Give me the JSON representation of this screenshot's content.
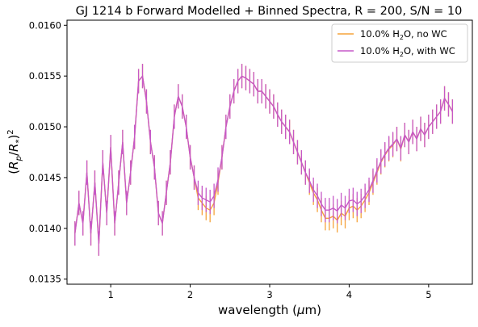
{
  "chart_data": {
    "type": "line",
    "title": "GJ 1214 b Forward Modelled + Binned Spectra, R = 200, S/N = 10",
    "xlabel": "wavelength (",
    "xlabel_unit": "μ",
    "xlabel_unit_suffix": "m)",
    "ylabel": "(R_p/R_*)^2",
    "xlim": [
      0.45,
      5.55
    ],
    "ylim": [
      0.01345,
      0.01605
    ],
    "x_ticks": [
      1,
      2,
      3,
      4,
      5
    ],
    "y_ticks": [
      0.0135,
      0.014,
      0.0145,
      0.015,
      0.0155,
      0.016
    ],
    "legend_position": "top-right",
    "grid": false,
    "series": [
      {
        "name": "10.0% H2O, no WC",
        "label_prefix": "10.0% H",
        "label_sub": "2",
        "label_suffix": "O, no WC",
        "color": "#f5a33a",
        "error_bar": 0.00012,
        "points": [
          [
            0.55,
            0.01395
          ],
          [
            0.6,
            0.01425
          ],
          [
            0.65,
            0.01405
          ],
          [
            0.7,
            0.01455
          ],
          [
            0.75,
            0.01395
          ],
          [
            0.8,
            0.01445
          ],
          [
            0.85,
            0.01385
          ],
          [
            0.9,
            0.01465
          ],
          [
            0.95,
            0.01415
          ],
          [
            1.0,
            0.0148
          ],
          [
            1.05,
            0.01405
          ],
          [
            1.1,
            0.01445
          ],
          [
            1.15,
            0.01485
          ],
          [
            1.2,
            0.01425
          ],
          [
            1.25,
            0.01455
          ],
          [
            1.3,
            0.0149
          ],
          [
            1.35,
            0.01545
          ],
          [
            1.4,
            0.0155
          ],
          [
            1.45,
            0.01525
          ],
          [
            1.5,
            0.01485
          ],
          [
            1.55,
            0.0146
          ],
          [
            1.6,
            0.01415
          ],
          [
            1.65,
            0.01405
          ],
          [
            1.7,
            0.01435
          ],
          [
            1.75,
            0.01465
          ],
          [
            1.8,
            0.0151
          ],
          [
            1.85,
            0.0153
          ],
          [
            1.9,
            0.0152
          ],
          [
            1.95,
            0.015
          ],
          [
            2.0,
            0.0147
          ],
          [
            2.05,
            0.0145
          ],
          [
            2.1,
            0.0143
          ],
          [
            2.15,
            0.01425
          ],
          [
            2.2,
            0.0142
          ],
          [
            2.25,
            0.01418
          ],
          [
            2.3,
            0.01425
          ],
          [
            2.35,
            0.01445
          ],
          [
            2.4,
            0.0147
          ],
          [
            2.45,
            0.015
          ],
          [
            2.5,
            0.0152
          ],
          [
            2.55,
            0.01535
          ],
          [
            2.6,
            0.01545
          ],
          [
            2.65,
            0.0155
          ],
          [
            2.7,
            0.01548
          ],
          [
            2.75,
            0.01545
          ],
          [
            2.8,
            0.01542
          ],
          [
            2.85,
            0.01535
          ],
          [
            2.9,
            0.01535
          ],
          [
            2.95,
            0.0153
          ],
          [
            3.0,
            0.01525
          ],
          [
            3.05,
            0.0152
          ],
          [
            3.1,
            0.01512
          ],
          [
            3.15,
            0.01505
          ],
          [
            3.2,
            0.015
          ],
          [
            3.25,
            0.01495
          ],
          [
            3.3,
            0.01485
          ],
          [
            3.35,
            0.01475
          ],
          [
            3.4,
            0.01465
          ],
          [
            3.45,
            0.01455
          ],
          [
            3.5,
            0.01445
          ],
          [
            3.55,
            0.01435
          ],
          [
            3.6,
            0.01428
          ],
          [
            3.65,
            0.01418
          ],
          [
            3.7,
            0.0141
          ],
          [
            3.75,
            0.0141
          ],
          [
            3.8,
            0.01412
          ],
          [
            3.85,
            0.01408
          ],
          [
            3.9,
            0.01415
          ],
          [
            3.95,
            0.01412
          ],
          [
            4.0,
            0.0142
          ],
          [
            4.05,
            0.01422
          ],
          [
            4.1,
            0.01418
          ],
          [
            4.15,
            0.01422
          ],
          [
            4.2,
            0.01428
          ],
          [
            4.25,
            0.01435
          ],
          [
            4.3,
            0.01445
          ],
          [
            4.35,
            0.01455
          ],
          [
            4.4,
            0.01465
          ],
          [
            4.45,
            0.01472
          ],
          [
            4.5,
            0.01478
          ],
          [
            4.55,
            0.01482
          ],
          [
            4.6,
            0.01488
          ],
          [
            4.65,
            0.01478
          ],
          [
            4.7,
            0.01492
          ],
          [
            4.75,
            0.01485
          ],
          [
            4.8,
            0.01495
          ],
          [
            4.85,
            0.01488
          ],
          [
            4.9,
            0.01498
          ],
          [
            4.95,
            0.01492
          ],
          [
            5.0,
            0.015
          ],
          [
            5.05,
            0.01505
          ],
          [
            5.1,
            0.0151
          ],
          [
            5.15,
            0.01515
          ],
          [
            5.2,
            0.01528
          ],
          [
            5.25,
            0.01522
          ],
          [
            5.3,
            0.01515
          ]
        ]
      },
      {
        "name": "10.0% H2O, with WC",
        "label_prefix": "10.0% H",
        "label_sub": "2",
        "label_suffix": "O, with WC",
        "color": "#c659c8",
        "error_bar": 0.00012,
        "points": [
          [
            0.55,
            0.01395
          ],
          [
            0.6,
            0.01425
          ],
          [
            0.65,
            0.01405
          ],
          [
            0.7,
            0.01455
          ],
          [
            0.75,
            0.01395
          ],
          [
            0.8,
            0.01445
          ],
          [
            0.85,
            0.01385
          ],
          [
            0.9,
            0.01465
          ],
          [
            0.95,
            0.01415
          ],
          [
            1.0,
            0.0148
          ],
          [
            1.05,
            0.01405
          ],
          [
            1.1,
            0.01445
          ],
          [
            1.15,
            0.01485
          ],
          [
            1.2,
            0.01425
          ],
          [
            1.25,
            0.01455
          ],
          [
            1.3,
            0.0149
          ],
          [
            1.35,
            0.01545
          ],
          [
            1.4,
            0.0155
          ],
          [
            1.45,
            0.01525
          ],
          [
            1.5,
            0.01485
          ],
          [
            1.55,
            0.0146
          ],
          [
            1.6,
            0.01415
          ],
          [
            1.65,
            0.01405
          ],
          [
            1.7,
            0.01435
          ],
          [
            1.75,
            0.01465
          ],
          [
            1.8,
            0.0151
          ],
          [
            1.85,
            0.0153
          ],
          [
            1.9,
            0.0152
          ],
          [
            1.95,
            0.015
          ],
          [
            2.0,
            0.0147
          ],
          [
            2.05,
            0.0145
          ],
          [
            2.1,
            0.01435
          ],
          [
            2.15,
            0.0143
          ],
          [
            2.2,
            0.01428
          ],
          [
            2.25,
            0.01426
          ],
          [
            2.3,
            0.01432
          ],
          [
            2.35,
            0.01448
          ],
          [
            2.4,
            0.0147
          ],
          [
            2.45,
            0.015
          ],
          [
            2.5,
            0.0152
          ],
          [
            2.55,
            0.01535
          ],
          [
            2.6,
            0.01545
          ],
          [
            2.65,
            0.0155
          ],
          [
            2.7,
            0.01548
          ],
          [
            2.75,
            0.01545
          ],
          [
            2.8,
            0.01542
          ],
          [
            2.85,
            0.01535
          ],
          [
            2.9,
            0.01535
          ],
          [
            2.95,
            0.0153
          ],
          [
            3.0,
            0.01525
          ],
          [
            3.05,
            0.0152
          ],
          [
            3.1,
            0.01512
          ],
          [
            3.15,
            0.01505
          ],
          [
            3.2,
            0.015
          ],
          [
            3.25,
            0.01495
          ],
          [
            3.3,
            0.01485
          ],
          [
            3.35,
            0.01475
          ],
          [
            3.4,
            0.01465
          ],
          [
            3.45,
            0.01455
          ],
          [
            3.5,
            0.01447
          ],
          [
            3.55,
            0.01438
          ],
          [
            3.6,
            0.01432
          ],
          [
            3.65,
            0.01424
          ],
          [
            3.7,
            0.01418
          ],
          [
            3.75,
            0.01418
          ],
          [
            3.8,
            0.0142
          ],
          [
            3.85,
            0.01417
          ],
          [
            3.9,
            0.01423
          ],
          [
            3.95,
            0.0142
          ],
          [
            4.0,
            0.01427
          ],
          [
            4.05,
            0.01428
          ],
          [
            4.1,
            0.01424
          ],
          [
            4.15,
            0.01427
          ],
          [
            4.2,
            0.01432
          ],
          [
            4.25,
            0.01438
          ],
          [
            4.3,
            0.01447
          ],
          [
            4.35,
            0.01457
          ],
          [
            4.4,
            0.01466
          ],
          [
            4.45,
            0.01473
          ],
          [
            4.5,
            0.01479
          ],
          [
            4.55,
            0.01483
          ],
          [
            4.6,
            0.01488
          ],
          [
            4.65,
            0.01479
          ],
          [
            4.7,
            0.01492
          ],
          [
            4.75,
            0.01485
          ],
          [
            4.8,
            0.01495
          ],
          [
            4.85,
            0.01488
          ],
          [
            4.9,
            0.01498
          ],
          [
            4.95,
            0.01492
          ],
          [
            5.0,
            0.015
          ],
          [
            5.05,
            0.01505
          ],
          [
            5.1,
            0.0151
          ],
          [
            5.15,
            0.01515
          ],
          [
            5.2,
            0.01528
          ],
          [
            5.25,
            0.01522
          ],
          [
            5.3,
            0.01515
          ]
        ]
      }
    ]
  }
}
